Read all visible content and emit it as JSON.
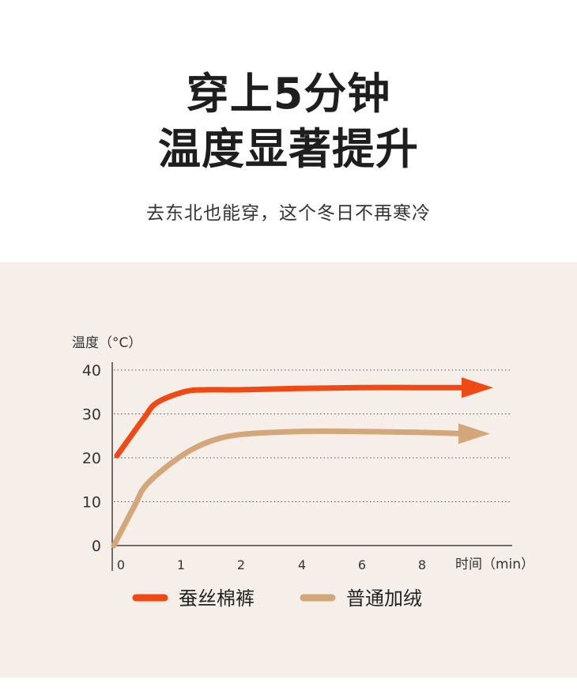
{
  "header": {
    "title_line1": "穿上5分钟",
    "title_line2": "温度显著提升",
    "subtitle": "去东北也能穿，这个冬日不再寒冷"
  },
  "chart_data": {
    "type": "line",
    "ylabel": "温度（°C）",
    "xlabel": "时间（min）",
    "yticks": [
      0,
      10,
      20,
      30,
      40
    ],
    "xticks": [
      0,
      1,
      2,
      4,
      6,
      8
    ],
    "ylim": [
      0,
      40
    ],
    "grid": true,
    "legend": "bottom",
    "series": [
      {
        "name": "蚕丝棉裤",
        "color": "#f04a14",
        "points": [
          [
            0,
            20.5
          ],
          [
            0.25,
            29
          ],
          [
            0.5,
            32.5
          ],
          [
            1,
            35
          ],
          [
            1.5,
            35.5
          ],
          [
            2,
            35.5
          ],
          [
            4,
            35.8
          ],
          [
            6,
            36
          ],
          [
            8,
            36
          ],
          [
            9.2,
            36
          ]
        ]
      },
      {
        "name": "普通加绒",
        "color": "#d4a77a",
        "points": [
          [
            0,
            0
          ],
          [
            0.25,
            9
          ],
          [
            0.5,
            14
          ],
          [
            1,
            20
          ],
          [
            1.5,
            23.5
          ],
          [
            2,
            25.3
          ],
          [
            4,
            26
          ],
          [
            6,
            26
          ],
          [
            8,
            25.8
          ],
          [
            9.1,
            25.5
          ]
        ]
      }
    ]
  }
}
